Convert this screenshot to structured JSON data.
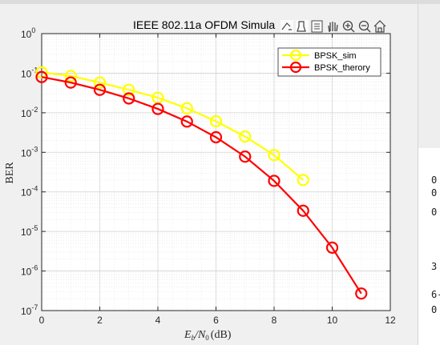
{
  "window": {
    "right_panel_fragments": [
      "0",
      "0",
      "0",
      "3",
      "6-",
      "0"
    ]
  },
  "axes_toolbar": {
    "icons": [
      "export-icon",
      "brush-icon",
      "data-tips-icon",
      "pan-icon",
      "zoom-in-icon",
      "zoom-out-icon",
      "home-icon"
    ]
  },
  "chart_data": {
    "type": "line",
    "title": "IEEE 802.11a OFDM Simula",
    "xlabel": "E_b/N_0 (dB)",
    "xlabel_parts": {
      "E": "E",
      "b": "b",
      "slash": "/N",
      "zero": "0",
      "unit": "(dB)"
    },
    "ylabel": "BER",
    "xlim": [
      0,
      12
    ],
    "ylim": [
      1e-07,
      1
    ],
    "yscale": "log",
    "grid": true,
    "legend_position": "top-right",
    "x_ticks": [
      "0",
      "2",
      "4",
      "6",
      "8",
      "10",
      "12"
    ],
    "y_ticks": [
      {
        "base": "10",
        "exp": "0"
      },
      {
        "base": "10",
        "exp": "-1"
      },
      {
        "base": "10",
        "exp": "-2"
      },
      {
        "base": "10",
        "exp": "-3"
      },
      {
        "base": "10",
        "exp": "-4"
      },
      {
        "base": "10",
        "exp": "-5"
      },
      {
        "base": "10",
        "exp": "-6"
      },
      {
        "base": "10",
        "exp": "-7"
      }
    ],
    "series": [
      {
        "name": "BPSK_sim",
        "color": "#ffff00",
        "x": [
          0,
          1,
          2,
          3,
          4,
          5,
          6,
          7,
          8,
          9
        ],
        "y": [
          0.105,
          0.085,
          0.058,
          0.038,
          0.024,
          0.013,
          0.0061,
          0.0025,
          0.00085,
          0.0002
        ]
      },
      {
        "name": "BPSK_therory",
        "color": "#ff0000",
        "x": [
          0,
          1,
          2,
          3,
          4,
          5,
          6,
          7,
          8,
          9,
          10,
          11
        ],
        "y": [
          0.08,
          0.058,
          0.038,
          0.023,
          0.0125,
          0.006,
          0.0024,
          0.00078,
          0.00019,
          3.34e-05,
          3.9e-06,
          2.7e-07
        ]
      }
    ]
  }
}
